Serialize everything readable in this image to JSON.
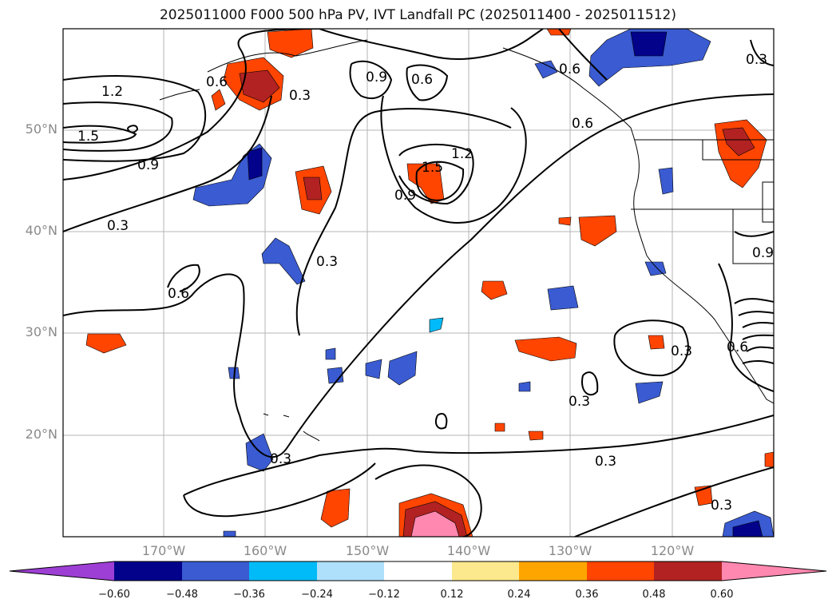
{
  "title": "2025011000 F000 500 hPa PV, IVT Landfall PC (2025011400 - 2025011512)",
  "lat_labels": [
    "50°N",
    "40°N",
    "30°N",
    "20°N"
  ],
  "lon_labels": [
    "170°W",
    "160°W",
    "150°W",
    "140°W",
    "130°W",
    "120°W"
  ],
  "colorbar": {
    "colors": [
      "#9d3fd4",
      "#02028b",
      "#3a5bd1",
      "#00bbf8",
      "#afe0fb",
      "#ffffff",
      "#fde98d",
      "#ffa500",
      "#ff4500",
      "#b22222",
      "#ff88b0"
    ],
    "ticks": [
      "−0.60",
      "−0.48",
      "−0.36",
      "−0.24",
      "−0.12",
      "0.12",
      "0.24",
      "0.36",
      "0.48",
      "0.60"
    ]
  },
  "contour_labels": [
    "1.2",
    "1.5",
    "0.9",
    "0.3",
    "0.6",
    "0.3",
    "0.6",
    "0.9",
    "0.6",
    "1.2",
    "1.5",
    "0.9",
    "0.6",
    "0.3",
    "0.6",
    "0.3",
    "0.9",
    "0.3",
    "0.3",
    "0.3",
    "0.3",
    "0.3",
    "0.6"
  ]
}
